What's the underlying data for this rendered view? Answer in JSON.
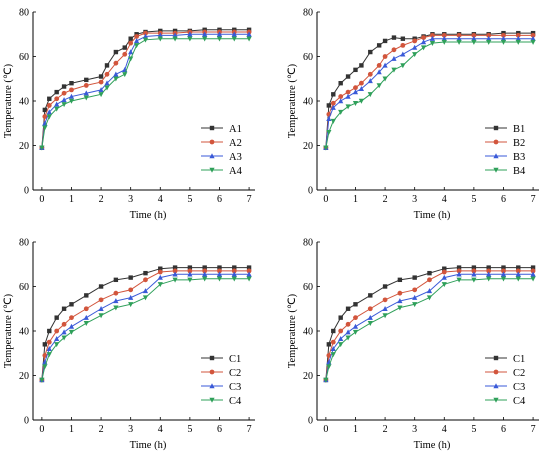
{
  "chart_data": [
    {
      "type": "line",
      "xlabel": "Time (h)",
      "ylabel": "Temperature (℃)",
      "xlim": [
        -0.3,
        7.2
      ],
      "ylim": [
        0,
        80
      ],
      "xticks": [
        0,
        1,
        2,
        3,
        4,
        5,
        6,
        7
      ],
      "yticks": [
        0,
        20,
        40,
        60,
        80
      ],
      "grid": false,
      "legend": "bottom-right",
      "series": [
        {
          "name": "A1",
          "color": "#333333",
          "marker": "square",
          "x": [
            0,
            0.1,
            0.25,
            0.5,
            0.75,
            1,
            1.5,
            2,
            2.2,
            2.5,
            2.8,
            3,
            3.2,
            3.5,
            4,
            4.5,
            5,
            5.5,
            6,
            6.5,
            7
          ],
          "y": [
            19,
            36,
            41,
            44,
            46.5,
            48,
            49.5,
            51,
            56,
            62,
            64,
            68,
            70,
            71,
            71.5,
            71.5,
            71.5,
            72,
            72,
            72,
            72
          ]
        },
        {
          "name": "A2",
          "color": "#d2553c",
          "marker": "circle",
          "x": [
            0,
            0.1,
            0.25,
            0.5,
            0.75,
            1,
            1.5,
            2,
            2.2,
            2.5,
            2.8,
            3,
            3.2,
            3.5,
            4,
            4.5,
            5,
            5.5,
            6,
            6.5,
            7
          ],
          "y": [
            19,
            33,
            38,
            41,
            43.5,
            45,
            47,
            48.5,
            52,
            57,
            61,
            66,
            69,
            70.5,
            70.5,
            70.5,
            71,
            71,
            71,
            71,
            71
          ]
        },
        {
          "name": "A3",
          "color": "#3a5ad8",
          "marker": "triangle",
          "x": [
            0,
            0.1,
            0.25,
            0.5,
            0.75,
            1,
            1.5,
            2,
            2.2,
            2.5,
            2.8,
            3,
            3.2,
            3.5,
            4,
            4.5,
            5,
            5.5,
            6,
            6.5,
            7
          ],
          "y": [
            19,
            30,
            35,
            38.5,
            40.5,
            42,
            43.5,
            45,
            48,
            52,
            54,
            62,
            67,
            69,
            69.5,
            69.5,
            70,
            70,
            70,
            70,
            70
          ]
        },
        {
          "name": "A4",
          "color": "#2fa05a",
          "marker": "triangle-down",
          "x": [
            0,
            0.1,
            0.25,
            0.5,
            0.75,
            1,
            1.5,
            2,
            2.2,
            2.5,
            2.8,
            3,
            3.2,
            3.5,
            4,
            4.5,
            5,
            5.5,
            6,
            6.5,
            7
          ],
          "y": [
            19,
            28,
            33,
            36.5,
            38.5,
            40,
            41.5,
            43,
            46,
            50,
            52,
            59,
            65,
            67.5,
            68,
            68,
            68,
            68,
            68,
            68,
            68
          ]
        }
      ]
    },
    {
      "type": "line",
      "xlabel": "Time (h)",
      "ylabel": "Temperature (℃)",
      "xlim": [
        -0.3,
        7.2
      ],
      "ylim": [
        0,
        80
      ],
      "xticks": [
        0,
        1,
        2,
        3,
        4,
        5,
        6,
        7
      ],
      "yticks": [
        0,
        20,
        40,
        60,
        80
      ],
      "grid": false,
      "legend": "bottom-right",
      "series": [
        {
          "name": "B1",
          "color": "#333333",
          "marker": "square",
          "x": [
            0,
            0.1,
            0.25,
            0.5,
            0.75,
            1,
            1.2,
            1.5,
            1.8,
            2,
            2.3,
            2.6,
            3,
            3.3,
            3.6,
            4,
            4.5,
            5,
            5.5,
            6,
            6.5,
            7
          ],
          "y": [
            19,
            38,
            43,
            48,
            51,
            54,
            56,
            62,
            65,
            67,
            68.5,
            68,
            68,
            69,
            70,
            70,
            70,
            70,
            70,
            70.5,
            70.5,
            70.5
          ]
        },
        {
          "name": "B2",
          "color": "#d2553c",
          "marker": "circle",
          "x": [
            0,
            0.1,
            0.25,
            0.5,
            0.75,
            1,
            1.2,
            1.5,
            1.8,
            2,
            2.3,
            2.6,
            3,
            3.3,
            3.6,
            4,
            4.5,
            5,
            5.5,
            6,
            6.5,
            7
          ],
          "y": [
            19,
            34,
            39,
            42,
            44,
            46,
            48,
            52,
            56,
            60,
            63,
            65,
            67,
            68.5,
            69.5,
            69.5,
            69.5,
            69.5,
            69.5,
            69.5,
            69.5,
            69.5
          ]
        },
        {
          "name": "B3",
          "color": "#3a5ad8",
          "marker": "triangle",
          "x": [
            0,
            0.1,
            0.25,
            0.5,
            0.75,
            1,
            1.2,
            1.5,
            1.8,
            2,
            2.3,
            2.6,
            3,
            3.3,
            3.6,
            4,
            4.5,
            5,
            5.5,
            6,
            6.5,
            7
          ],
          "y": [
            19,
            32,
            37,
            40,
            42,
            44,
            45.5,
            49,
            53,
            56,
            59,
            61,
            64,
            66.5,
            68,
            68,
            68,
            68,
            68,
            68,
            68,
            68
          ]
        },
        {
          "name": "B4",
          "color": "#2fa05a",
          "marker": "triangle-down",
          "x": [
            0,
            0.1,
            0.25,
            0.5,
            0.75,
            1,
            1.2,
            1.5,
            1.8,
            2,
            2.3,
            2.6,
            3,
            3.3,
            3.6,
            4,
            4.5,
            5,
            5.5,
            6,
            6.5,
            7
          ],
          "y": [
            19,
            26,
            31,
            35,
            37.5,
            39,
            40,
            43,
            47,
            50,
            54,
            56,
            61,
            64,
            66,
            66.5,
            66.5,
            66.5,
            66.5,
            66.5,
            66.5,
            66.5
          ]
        }
      ]
    },
    {
      "type": "line",
      "xlabel": "Time (h)",
      "ylabel": "Temperature (℃)",
      "xlim": [
        -0.3,
        7.2
      ],
      "ylim": [
        0,
        80
      ],
      "xticks": [
        0,
        1,
        2,
        3,
        4,
        5,
        6,
        7
      ],
      "yticks": [
        0,
        20,
        40,
        60,
        80
      ],
      "grid": false,
      "legend": "bottom-right",
      "series": [
        {
          "name": "C1",
          "color": "#333333",
          "marker": "square",
          "x": [
            0,
            0.1,
            0.25,
            0.5,
            0.75,
            1,
            1.5,
            2,
            2.5,
            3,
            3.5,
            4,
            4.5,
            5,
            5.5,
            6,
            6.5,
            7
          ],
          "y": [
            18,
            34,
            40,
            46,
            50,
            52,
            56,
            60,
            63,
            64,
            66,
            68,
            68.5,
            68.5,
            68.5,
            68.5,
            68.5,
            68.5
          ]
        },
        {
          "name": "C2",
          "color": "#d2553c",
          "marker": "circle",
          "x": [
            0,
            0.1,
            0.25,
            0.5,
            0.75,
            1,
            1.5,
            2,
            2.5,
            3,
            3.5,
            4,
            4.5,
            5,
            5.5,
            6,
            6.5,
            7
          ],
          "y": [
            18,
            29,
            35,
            40,
            43,
            46,
            50,
            54,
            57,
            58.5,
            63,
            66.5,
            67,
            67,
            67,
            67,
            67,
            67
          ]
        },
        {
          "name": "C3",
          "color": "#3a5ad8",
          "marker": "triangle",
          "x": [
            0,
            0.1,
            0.25,
            0.5,
            0.75,
            1,
            1.5,
            2,
            2.5,
            3,
            3.5,
            4,
            4.5,
            5,
            5.5,
            6,
            6.5,
            7
          ],
          "y": [
            18,
            26,
            32,
            36.5,
            39.5,
            42,
            46,
            50,
            53.5,
            55,
            58,
            64,
            65.5,
            65.5,
            65.5,
            65.5,
            65.5,
            65.5
          ]
        },
        {
          "name": "C4",
          "color": "#2fa05a",
          "marker": "triangle-down",
          "x": [
            0,
            0.1,
            0.25,
            0.5,
            0.75,
            1,
            1.5,
            2,
            2.5,
            3,
            3.5,
            4,
            4.5,
            5,
            5.5,
            6,
            6.5,
            7
          ],
          "y": [
            18,
            24,
            29.5,
            34,
            37,
            39.5,
            43.5,
            47,
            50.5,
            52,
            55,
            61,
            63,
            63,
            63.5,
            63.5,
            63.5,
            63.5
          ]
        }
      ]
    },
    {
      "type": "line",
      "xlabel": "Time (h)",
      "ylabel": "Temperature (℃)",
      "xlim": [
        -0.3,
        7.2
      ],
      "ylim": [
        0,
        80
      ],
      "xticks": [
        0,
        1,
        2,
        3,
        4,
        5,
        6,
        7
      ],
      "yticks": [
        0,
        20,
        40,
        60,
        80
      ],
      "grid": false,
      "legend": "bottom-right",
      "series": [
        {
          "name": "C1",
          "color": "#333333",
          "marker": "square",
          "x": [
            0,
            0.1,
            0.25,
            0.5,
            0.75,
            1,
            1.5,
            2,
            2.5,
            3,
            3.5,
            4,
            4.5,
            5,
            5.5,
            6,
            6.5,
            7
          ],
          "y": [
            18,
            34,
            40,
            46,
            50,
            52,
            56,
            60,
            63,
            64,
            66,
            68,
            68.5,
            68.5,
            68.5,
            68.5,
            68.5,
            68.5
          ]
        },
        {
          "name": "C2",
          "color": "#d2553c",
          "marker": "circle",
          "x": [
            0,
            0.1,
            0.25,
            0.5,
            0.75,
            1,
            1.5,
            2,
            2.5,
            3,
            3.5,
            4,
            4.5,
            5,
            5.5,
            6,
            6.5,
            7
          ],
          "y": [
            18,
            29,
            35,
            40,
            43,
            46,
            50,
            54,
            57,
            58.5,
            63,
            66.5,
            67,
            67,
            67,
            67,
            67,
            67
          ]
        },
        {
          "name": "C3",
          "color": "#3a5ad8",
          "marker": "triangle",
          "x": [
            0,
            0.1,
            0.25,
            0.5,
            0.75,
            1,
            1.5,
            2,
            2.5,
            3,
            3.5,
            4,
            4.5,
            5,
            5.5,
            6,
            6.5,
            7
          ],
          "y": [
            18,
            26,
            32,
            36.5,
            39.5,
            42,
            46,
            50,
            53.5,
            55,
            58,
            64,
            65.5,
            65.5,
            65.5,
            65.5,
            65.5,
            65.5
          ]
        },
        {
          "name": "C4",
          "color": "#2fa05a",
          "marker": "triangle-down",
          "x": [
            0,
            0.1,
            0.25,
            0.5,
            0.75,
            1,
            1.5,
            2,
            2.5,
            3,
            3.5,
            4,
            4.5,
            5,
            5.5,
            6,
            6.5,
            7
          ],
          "y": [
            18,
            24,
            29.5,
            34,
            37,
            39.5,
            43.5,
            47,
            50.5,
            52,
            55,
            61,
            63,
            63,
            63.5,
            63.5,
            63.5,
            63.5
          ]
        }
      ]
    }
  ]
}
